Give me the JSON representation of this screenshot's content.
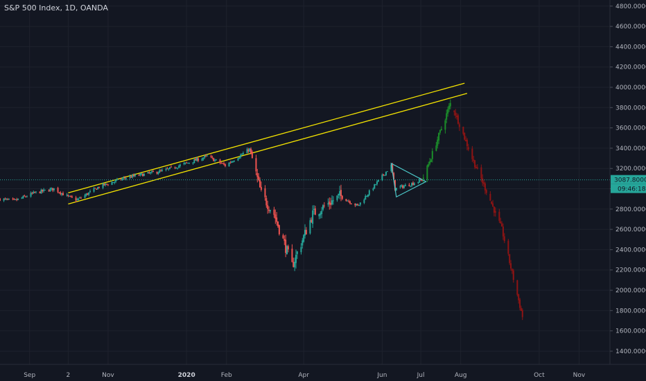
{
  "header": {
    "title": "S&P 500 Index, 1D, OANDA"
  },
  "chart_data": {
    "type": "candlestick",
    "title": "S&P 500 Index, 1D, OANDA",
    "y_ticks": [
      "4800.0000",
      "4600.0000",
      "4400.0000",
      "4200.0000",
      "4000.0000",
      "3800.0000",
      "3600.0000",
      "3400.0000",
      "3200.0000",
      "3000.0000",
      "2800.0000",
      "2600.0000",
      "2400.0000",
      "2200.0000",
      "2000.0000",
      "1800.0000",
      "1600.0000",
      "1400.0000"
    ],
    "y_tick_values": [
      4800,
      4600,
      4400,
      4200,
      4000,
      3800,
      3600,
      3400,
      3200,
      3000,
      2800,
      2600,
      2400,
      2200,
      2000,
      1800,
      1600,
      1400
    ],
    "x_ticks": [
      {
        "label": "Sep",
        "date": "2019-09-01",
        "bold": false
      },
      {
        "label": "2",
        "date": "2019-10-01",
        "bold": false
      },
      {
        "label": "Nov",
        "date": "2019-11-01",
        "bold": false
      },
      {
        "label": "2020",
        "date": "2020-01-01",
        "bold": true
      },
      {
        "label": "Feb",
        "date": "2020-02-01",
        "bold": false
      },
      {
        "label": "Apr",
        "date": "2020-04-01",
        "bold": false
      },
      {
        "label": "Jun",
        "date": "2020-06-01",
        "bold": false
      },
      {
        "label": "Jul",
        "date": "2020-07-01",
        "bold": false
      },
      {
        "label": "Aug",
        "date": "2020-08-01",
        "bold": false
      },
      {
        "label": "Oct",
        "date": "2020-10-01",
        "bold": false
      },
      {
        "label": "Nov",
        "date": "2020-11-01",
        "bold": false
      }
    ],
    "x_range": [
      "2019-08-09",
      "2020-11-25"
    ],
    "y_range": [
      1270,
      4860
    ],
    "current_price": "3087.8000",
    "current_price_value": 3087.8,
    "countdown": "09:46:18",
    "colors": {
      "background": "#131722",
      "up": "#26a69a",
      "down": "#ef5350",
      "projection_up": "#1b8e2a",
      "projection_down": "#8e1414",
      "channel": "#f5e400",
      "triangle": "#4cc9c9",
      "price_line": "#26a69a",
      "axis_text": "#b2b5be"
    },
    "anchors": [
      [
        "2019-08-09",
        2900
      ],
      [
        "2019-08-20",
        2880
      ],
      [
        "2019-09-05",
        2960
      ],
      [
        "2019-09-20",
        3000
      ],
      [
        "2019-10-01",
        2920
      ],
      [
        "2019-10-08",
        2890
      ],
      [
        "2019-10-25",
        3020
      ],
      [
        "2019-11-15",
        3110
      ],
      [
        "2019-12-15",
        3180
      ],
      [
        "2020-01-17",
        3320
      ],
      [
        "2020-01-31",
        3230
      ],
      [
        "2020-02-19",
        3390
      ],
      [
        "2020-02-28",
        2950
      ],
      [
        "2020-03-09",
        2750
      ],
      [
        "2020-03-23",
        2240
      ],
      [
        "2020-04-08",
        2750
      ],
      [
        "2020-04-29",
        2930
      ],
      [
        "2020-05-13",
        2830
      ],
      [
        "2020-06-08",
        3230
      ],
      [
        "2020-06-11",
        3000
      ],
      [
        "2020-06-24",
        3050
      ],
      [
        "2020-07-02",
        3090
      ]
    ],
    "projection_up": [
      [
        "2020-07-03",
        3100
      ],
      [
        "2020-07-24",
        3840
      ]
    ],
    "projection_down": [
      [
        "2020-07-25",
        3840
      ],
      [
        "2020-08-10",
        3300
      ],
      [
        "2020-08-22",
        2950
      ],
      [
        "2020-09-02",
        2600
      ],
      [
        "2020-09-18",
        1740
      ]
    ],
    "channel_upper": [
      [
        "2019-10-01",
        2960
      ],
      [
        "2020-08-04",
        4040
      ]
    ],
    "channel_lower": [
      [
        "2019-10-01",
        2850
      ],
      [
        "2020-08-06",
        3940
      ]
    ],
    "triangle": [
      [
        "2020-06-08",
        3250
      ],
      [
        "2020-07-05",
        3070
      ],
      [
        "2020-06-12",
        2920
      ]
    ]
  }
}
